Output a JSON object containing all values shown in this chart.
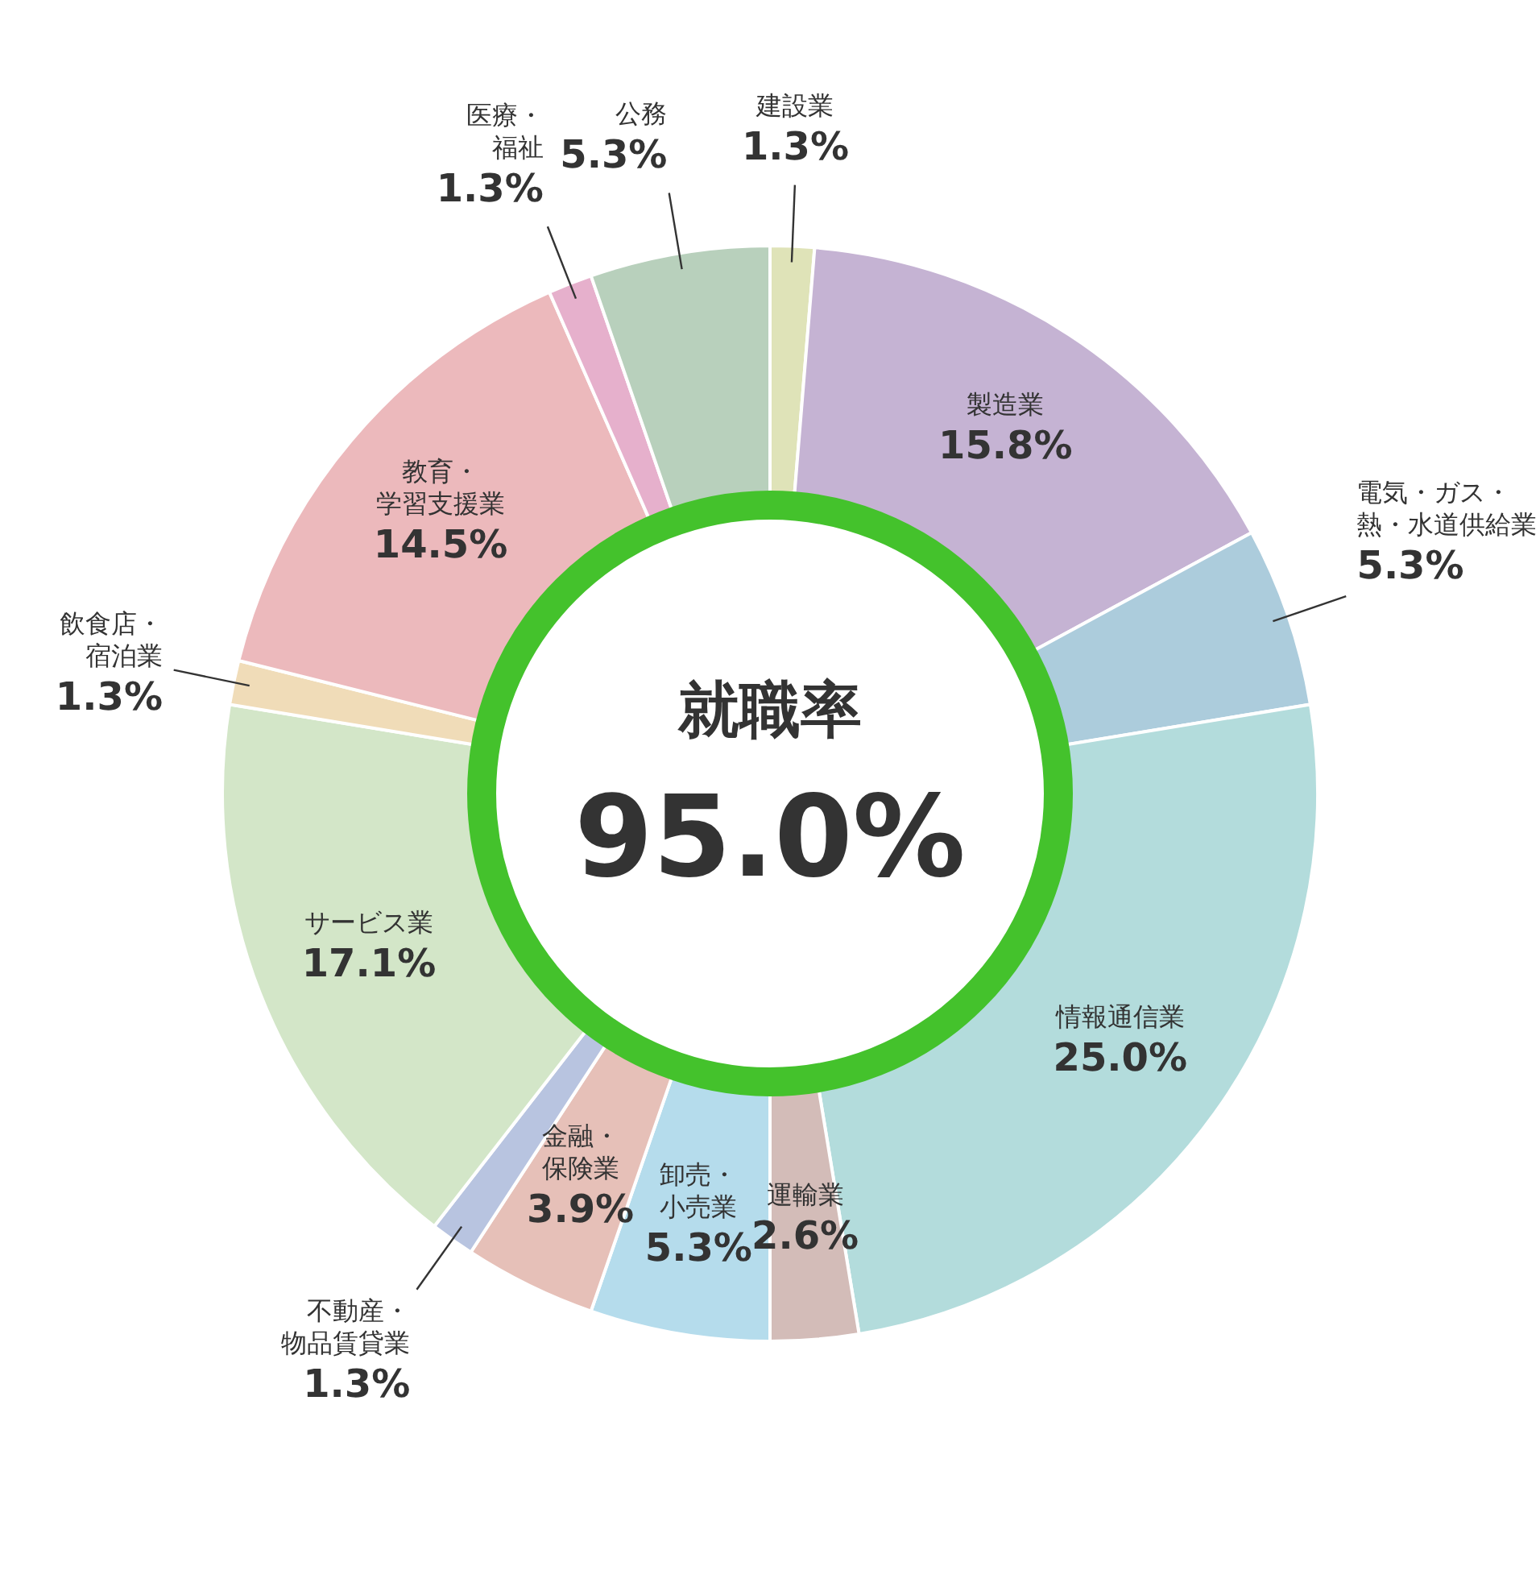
{
  "chart_data": {
    "type": "donut",
    "categories": [
      "建設業",
      "製造業",
      "電気・ガス・熱・水道供給業",
      "情報通信業",
      "運輸業",
      "卸売・小売業",
      "金融・保険業",
      "不動産・物品賃貸業",
      "サービス業",
      "飲食店・宿泊業",
      "教育・学習支援業",
      "医療・福祉",
      "公務"
    ],
    "values": [
      1.3,
      15.8,
      5.3,
      25.0,
      2.6,
      5.3,
      3.9,
      1.3,
      17.1,
      1.3,
      14.5,
      1.3,
      5.3
    ],
    "value_labels": [
      "1.3%",
      "15.8%",
      "5.3%",
      "25.0%",
      "2.6%",
      "5.3%",
      "3.9%",
      "1.3%",
      "17.1%",
      "1.3%",
      "14.5%",
      "1.3%",
      "5.3%"
    ],
    "colors": [
      "#dfe3b8",
      "#c5b3d3",
      "#acccdc",
      "#b3dcdc",
      "#d3bcb8",
      "#b5dcec",
      "#e6c0b8",
      "#b8c4e0",
      "#d3e6c8",
      "#f0dcb8",
      "#ecb9bc",
      "#e6b0cc",
      "#b8d0bc"
    ],
    "annotations": [
      "就職率",
      "95.0%"
    ]
  }
}
